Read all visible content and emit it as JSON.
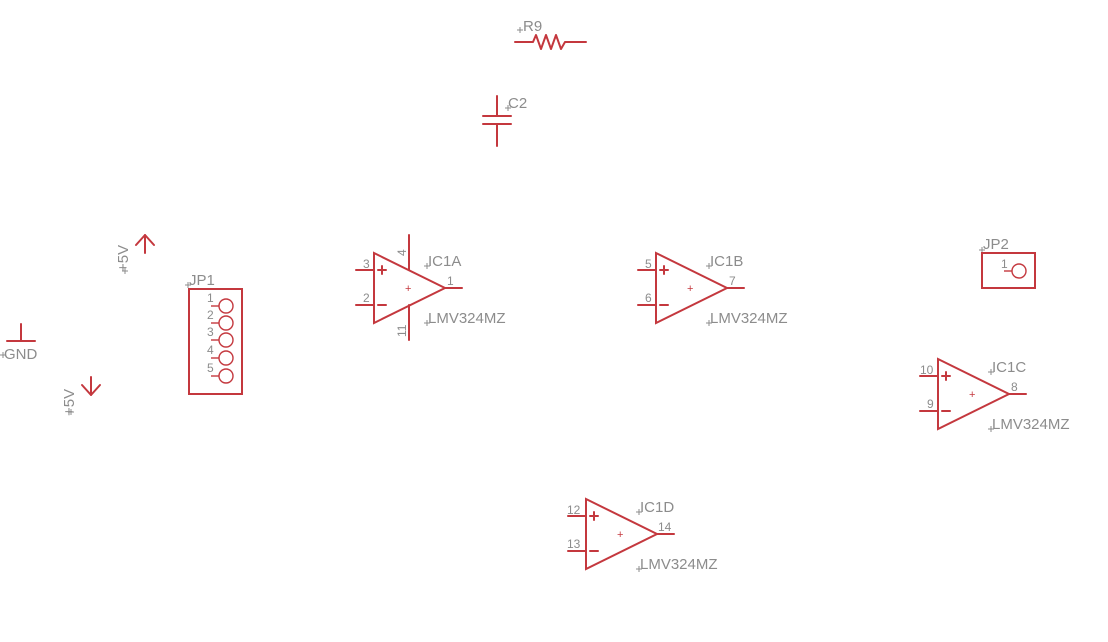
{
  "colors": {
    "part": "#c4383e",
    "label": "#8c8c8c",
    "background": "#ffffff"
  },
  "r9": {
    "name": "R9"
  },
  "c2": {
    "name": "C2"
  },
  "supplies": {
    "vcc_label": "+5V",
    "gnd_label": "GND",
    "neg_label": "+5V"
  },
  "jp1": {
    "name": "JP1",
    "pins": [
      "1",
      "2",
      "3",
      "4",
      "5"
    ]
  },
  "jp2": {
    "name": "JP2",
    "pin": "1"
  },
  "opamps": {
    "a": {
      "name": "IC1A",
      "value": "LMV324MZ",
      "pin_plus": "3",
      "pin_minus": "2",
      "pin_out": "1",
      "pin_vcc": "4",
      "pin_gnd": "11"
    },
    "b": {
      "name": "IC1B",
      "value": "LMV324MZ",
      "pin_plus": "5",
      "pin_minus": "6",
      "pin_out": "7"
    },
    "c": {
      "name": "IC1C",
      "value": "LMV324MZ",
      "pin_plus": "10",
      "pin_minus": "9",
      "pin_out": "8"
    },
    "d": {
      "name": "IC1D",
      "value": "LMV324MZ",
      "pin_plus": "12",
      "pin_minus": "13",
      "pin_out": "14"
    }
  }
}
